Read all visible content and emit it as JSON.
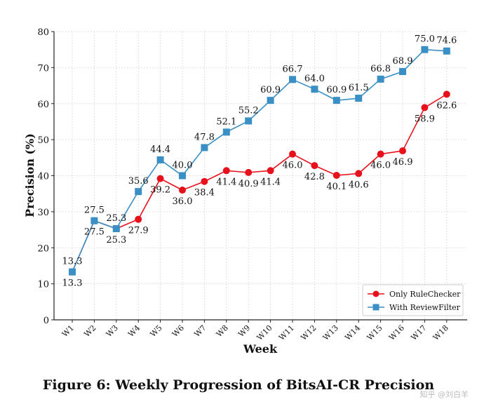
{
  "chart_data": {
    "type": "line",
    "title": "Figure 6: Weekly Progression of BitsAI-CR Precision",
    "xlabel": "Week",
    "ylabel": "Precision (%)",
    "ylim": [
      0,
      80
    ],
    "yticks": [
      "0",
      "10",
      "20",
      "30",
      "40",
      "50",
      "60",
      "70",
      "80"
    ],
    "grid": true,
    "legend_position": "bottom-right",
    "categories": [
      "W1",
      "W2",
      "W3",
      "W4",
      "W5",
      "W6",
      "W7",
      "W8",
      "W9",
      "W10",
      "W11",
      "W12",
      "W13",
      "W14",
      "W15",
      "W16",
      "W17",
      "W18"
    ],
    "series": [
      {
        "name": "Only RuleChecker",
        "color": "#e8101a",
        "marker": "circle",
        "values": [
          13.3,
          27.5,
          25.3,
          27.9,
          39.2,
          36.0,
          38.4,
          41.4,
          40.9,
          41.4,
          46.0,
          42.8,
          40.1,
          40.6,
          46.0,
          46.9,
          58.9,
          62.6
        ],
        "labels": [
          "13.3",
          "27.5",
          "25.3",
          "27.9",
          "39.2",
          "36.0",
          "38.4",
          "41.4",
          "40.9",
          "41.4",
          "46.0",
          "42.8",
          "40.1",
          "40.6",
          "46.0",
          "46.9",
          "58.9",
          "62.6"
        ]
      },
      {
        "name": "With ReviewFilter",
        "color": "#3a8fc4",
        "marker": "square",
        "values": [
          13.3,
          27.5,
          25.3,
          35.6,
          44.4,
          40.0,
          47.8,
          52.1,
          55.2,
          60.9,
          66.7,
          64.0,
          60.9,
          61.5,
          66.8,
          68.9,
          75.0,
          74.6
        ],
        "labels": [
          "13.3",
          "27.5",
          "25.3",
          "35.6",
          "44.4",
          "40.0",
          "47.8",
          "52.1",
          "55.2",
          "60.9",
          "66.7",
          "64.0",
          "60.9",
          "61.5",
          "66.8",
          "68.9",
          "75.0",
          "74.6"
        ]
      }
    ]
  },
  "watermark": "知乎 @刘白羊"
}
